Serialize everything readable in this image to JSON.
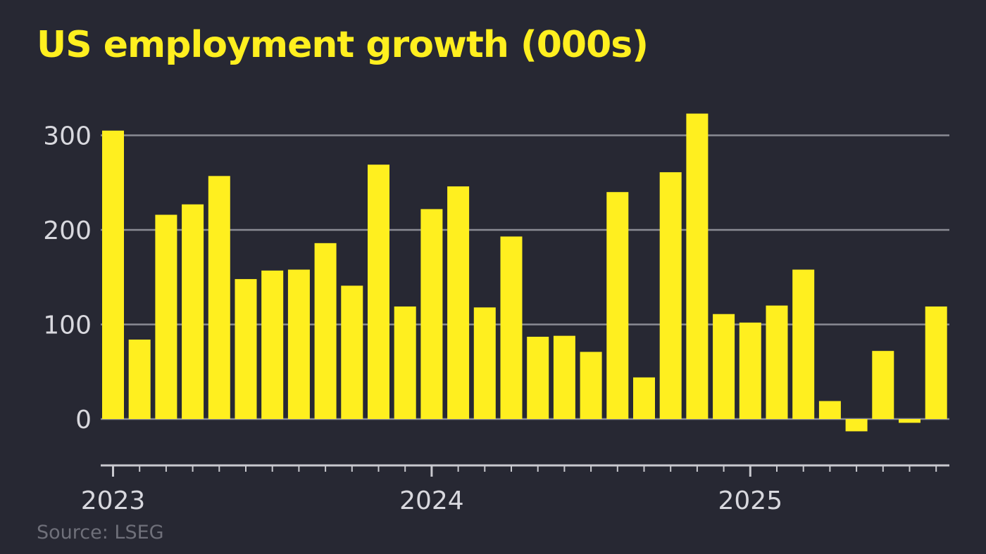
{
  "title": "US employment growth (000s)",
  "source": "Source: LSEG",
  "colors": {
    "background": "#272833",
    "bar": "#ffef1f",
    "title": "#ffef1f",
    "grid": "#8a8b94",
    "axis": "#c9c9cf",
    "tick_text": "#d8d8de",
    "source_text": "#6f707a"
  },
  "chart_data": {
    "type": "bar",
    "title": "US employment growth (000s)",
    "xlabel": "",
    "ylabel": "",
    "ylim": [
      -50,
      330
    ],
    "yticks": [
      0,
      100,
      200,
      300
    ],
    "grid": true,
    "legend": "none",
    "x_tick_labels": [
      "2023",
      "2024",
      "2025"
    ],
    "x_tick_label_month_index": [
      0,
      12,
      24
    ],
    "months_total": 32,
    "categories": [
      "2023-01",
      "2023-02",
      "2023-03",
      "2023-04",
      "2023-05",
      "2023-06",
      "2023-07",
      "2023-08",
      "2023-09",
      "2023-10",
      "2023-11",
      "2023-12",
      "2024-01",
      "2024-02",
      "2024-03",
      "2024-04",
      "2024-05",
      "2024-06",
      "2024-07",
      "2024-08",
      "2024-09",
      "2024-10",
      "2024-11",
      "2024-12",
      "2025-01",
      "2025-02",
      "2025-03",
      "2025-04",
      "2025-05",
      "2025-06",
      "2025-07",
      "2025-08"
    ],
    "values": [
      305,
      84,
      216,
      227,
      257,
      148,
      157,
      158,
      186,
      141,
      269,
      119,
      222,
      246,
      118,
      193,
      87,
      88,
      71,
      240,
      44,
      261,
      323,
      111,
      102,
      120,
      158,
      19,
      -13,
      72,
      -4,
      119
    ]
  }
}
